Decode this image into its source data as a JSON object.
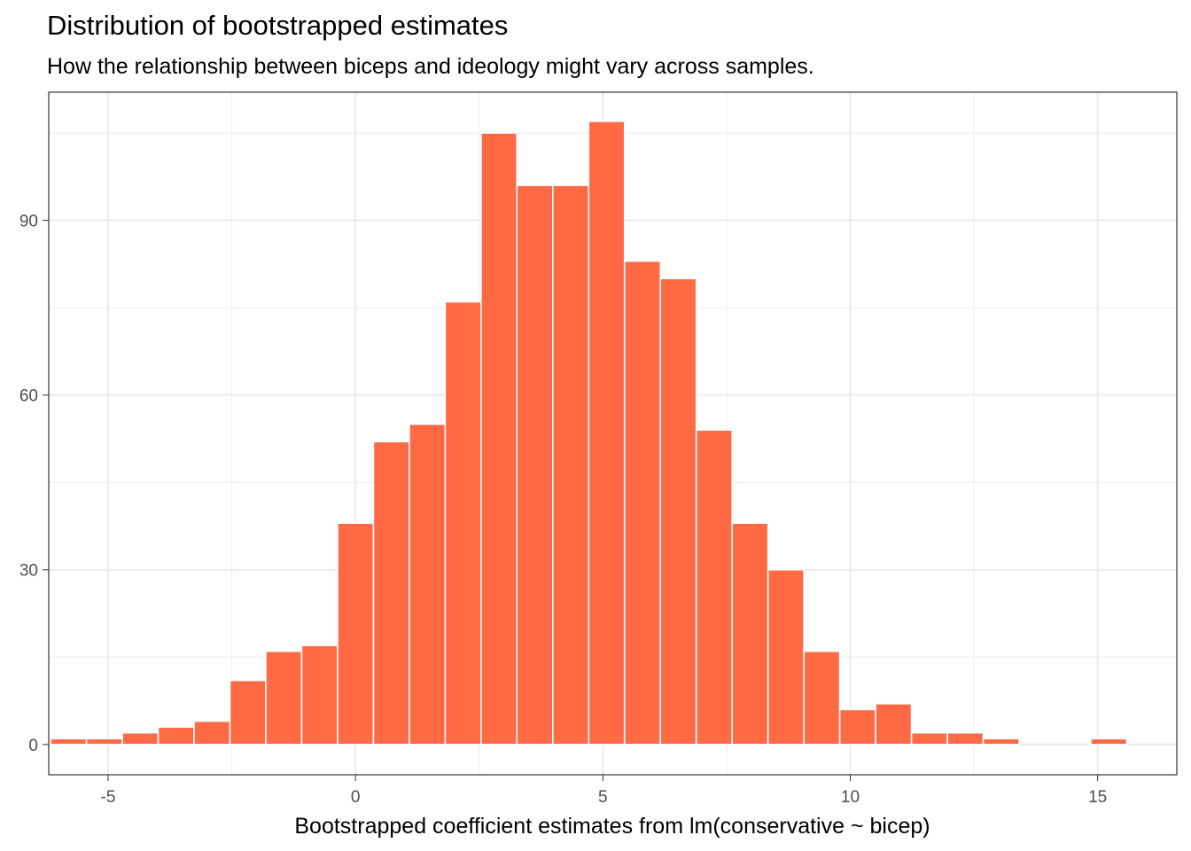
{
  "chart_data": {
    "type": "bar",
    "title": "Distribution of bootstrapped estimates",
    "subtitle": "How the relationship between biceps and ideology might vary across samples.",
    "xlabel": "Bootstrapped coefficient estimates from lm(conservative ~ bicep)",
    "ylabel": "",
    "bar_color": "#FF6A45",
    "grid": true,
    "xlim": [
      -6.2,
      16.6
    ],
    "ylim": [
      -5.2,
      112
    ],
    "x_ticks": [
      -5,
      0,
      5,
      10,
      15
    ],
    "x_tick_labels": [
      "-5",
      "0",
      "5",
      "10",
      "15"
    ],
    "y_ticks": [
      0,
      30,
      60,
      90
    ],
    "y_tick_labels": [
      "0",
      "30",
      "60",
      "90"
    ],
    "bin_width": 0.725,
    "bins": [
      {
        "x": -5.8,
        "count": 1
      },
      {
        "x": -5.075,
        "count": 1
      },
      {
        "x": -4.35,
        "count": 2
      },
      {
        "x": -3.625,
        "count": 3
      },
      {
        "x": -2.9,
        "count": 4
      },
      {
        "x": -2.175,
        "count": 11
      },
      {
        "x": -1.45,
        "count": 16
      },
      {
        "x": -0.725,
        "count": 17
      },
      {
        "x": 0.0,
        "count": 38
      },
      {
        "x": 0.725,
        "count": 52
      },
      {
        "x": 1.45,
        "count": 55
      },
      {
        "x": 2.175,
        "count": 76
      },
      {
        "x": 2.9,
        "count": 105
      },
      {
        "x": 3.625,
        "count": 96
      },
      {
        "x": 4.35,
        "count": 96
      },
      {
        "x": 5.075,
        "count": 107
      },
      {
        "x": 5.8,
        "count": 83
      },
      {
        "x": 6.525,
        "count": 80
      },
      {
        "x": 7.25,
        "count": 54
      },
      {
        "x": 7.975,
        "count": 38
      },
      {
        "x": 8.7,
        "count": 30
      },
      {
        "x": 9.425,
        "count": 16
      },
      {
        "x": 10.15,
        "count": 6
      },
      {
        "x": 10.875,
        "count": 7
      },
      {
        "x": 11.6,
        "count": 2
      },
      {
        "x": 12.325,
        "count": 2
      },
      {
        "x": 13.05,
        "count": 1
      },
      {
        "x": 13.775,
        "count": 0
      },
      {
        "x": 14.5,
        "count": 0
      },
      {
        "x": 15.225,
        "count": 1
      }
    ]
  }
}
